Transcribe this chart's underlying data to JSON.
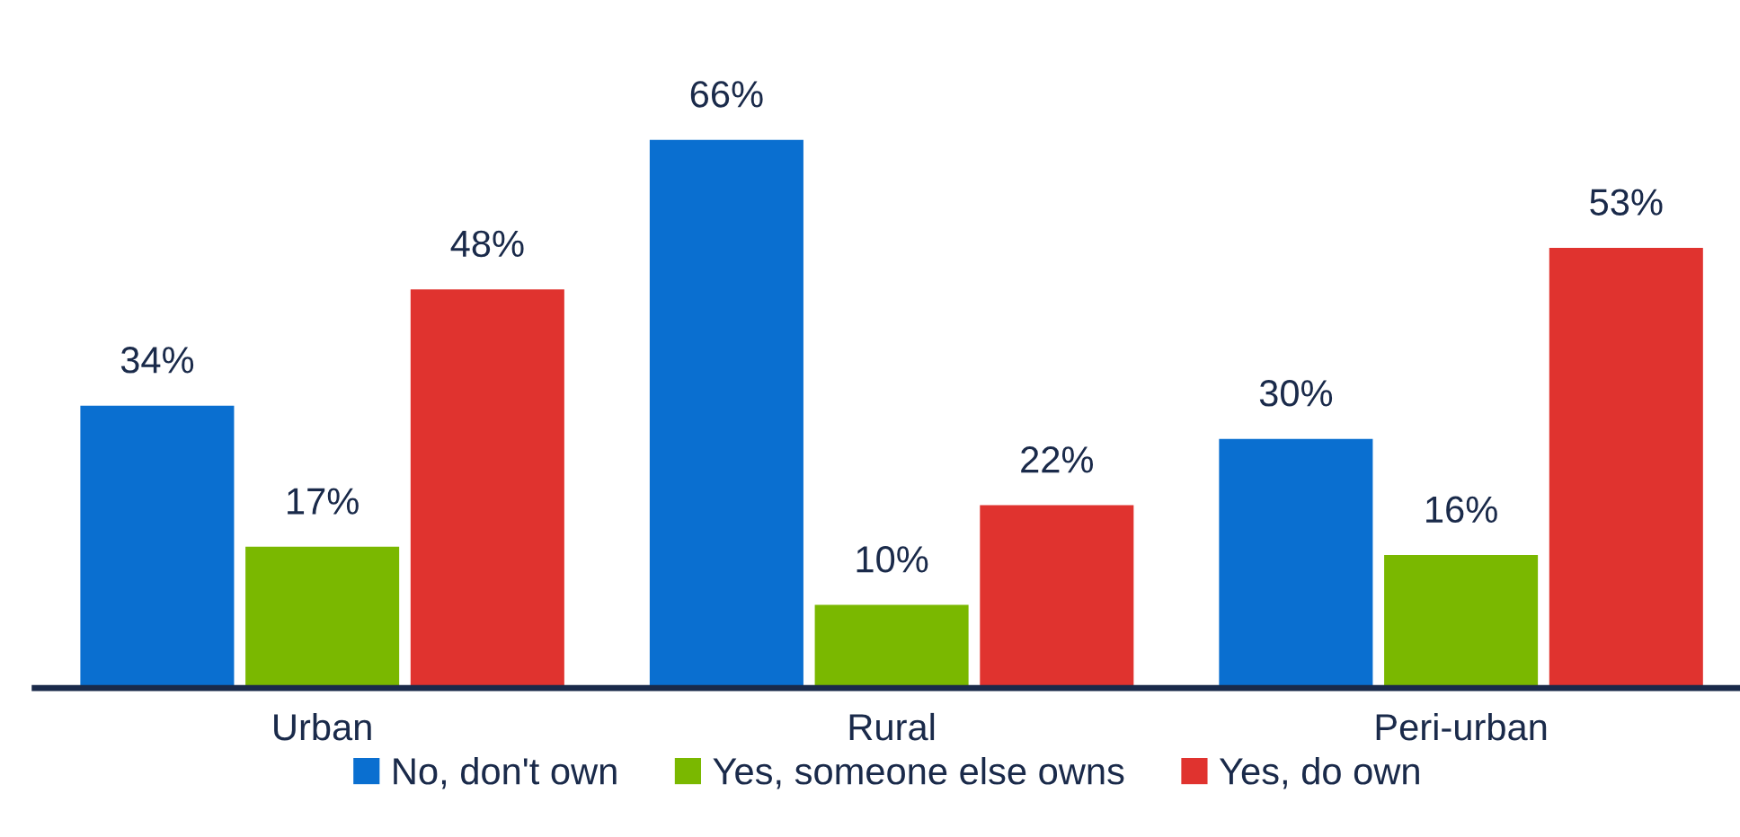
{
  "chart_data": {
    "type": "bar",
    "categories": [
      "Urban",
      "Rural",
      "Peri-urban"
    ],
    "series": [
      {
        "name": "No, don't own",
        "color": "#0a6fd0",
        "values": [
          34,
          66,
          30
        ],
        "value_labels": [
          "34%",
          "66%",
          "30%"
        ]
      },
      {
        "name": "Yes, someone else owns",
        "color": "#7ab800",
        "values": [
          17,
          10,
          16
        ],
        "value_labels": [
          "17%",
          "10%",
          "16%"
        ]
      },
      {
        "name": "Yes, do own",
        "color": "#e0332f",
        "values": [
          48,
          22,
          53
        ],
        "value_labels": [
          "48%",
          "22%",
          "53%"
        ]
      }
    ],
    "legend": "bottom",
    "grid": false
  }
}
